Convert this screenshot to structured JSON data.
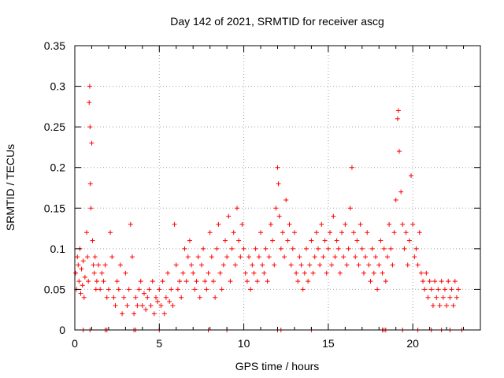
{
  "chart_data": {
    "type": "scatter",
    "title": "Day 142 of 2021, SRMTID for receiver ascg",
    "xlabel": "GPS time / hours",
    "ylabel": "SRMTID / TECUs",
    "xlim": [
      0,
      24
    ],
    "ylim": [
      0,
      0.35
    ],
    "xticks": [
      0,
      5,
      10,
      15,
      20
    ],
    "xtick_labels": [
      "0",
      "5",
      "10",
      "15",
      "20"
    ],
    "yticks": [
      0,
      0.05,
      0.1,
      0.15,
      0.2,
      0.25,
      0.3,
      0.35
    ],
    "ytick_labels": [
      "0",
      "0.05",
      "0.1",
      "0.15",
      "0.2",
      "0.25",
      "0.3",
      "0.35"
    ],
    "grid": true,
    "marker": "+",
    "color": "#ff0000",
    "series": [
      {
        "name": "SRMTID",
        "points": [
          [
            0.05,
            0.07
          ],
          [
            0.1,
            0.05
          ],
          [
            0.15,
            0.09
          ],
          [
            0.2,
            0.08
          ],
          [
            0.25,
            0.06
          ],
          [
            0.3,
            0.1
          ],
          [
            0.35,
            0.045
          ],
          [
            0.4,
            0.075
          ],
          [
            0.45,
            0.055
          ],
          [
            0.5,
            0.085
          ],
          [
            0.55,
            0.04
          ],
          [
            0.6,
            0.065
          ],
          [
            0.7,
            0.12
          ],
          [
            0.75,
            0.09
          ],
          [
            0.8,
            0.06
          ],
          [
            0.85,
            0.28
          ],
          [
            0.88,
            0.3
          ],
          [
            0.9,
            0.25
          ],
          [
            0.92,
            0.18
          ],
          [
            0.95,
            0.15
          ],
          [
            1.0,
            0.23
          ],
          [
            1.05,
            0.11
          ],
          [
            1.1,
            0.08
          ],
          [
            1.15,
            0.07
          ],
          [
            1.2,
            0.09
          ],
          [
            1.25,
            0.05
          ],
          [
            1.3,
            0.06
          ],
          [
            1.4,
            0.08
          ],
          [
            1.5,
            0.05
          ],
          [
            1.6,
            0.07
          ],
          [
            1.7,
            0.06
          ],
          [
            1.8,
            0.08
          ],
          [
            1.9,
            0.04
          ],
          [
            2.0,
            0.05
          ],
          [
            2.1,
            0.12
          ],
          [
            2.2,
            0.09
          ],
          [
            2.3,
            0.04
          ],
          [
            2.4,
            0.03
          ],
          [
            2.5,
            0.06
          ],
          [
            2.6,
            0.05
          ],
          [
            2.7,
            0.08
          ],
          [
            2.8,
            0.02
          ],
          [
            2.9,
            0.04
          ],
          [
            3.0,
            0.07
          ],
          [
            3.1,
            0.03
          ],
          [
            3.2,
            0.05
          ],
          [
            3.3,
            0.13
          ],
          [
            3.4,
            0.09
          ],
          [
            3.5,
            0.02
          ],
          [
            3.6,
            0.04
          ],
          [
            3.7,
            0.03
          ],
          [
            3.8,
            0.05
          ],
          [
            3.9,
            0.06
          ],
          [
            4.0,
            0.03
          ],
          [
            4.1,
            0.045
          ],
          [
            4.2,
            0.025
          ],
          [
            4.3,
            0.04
          ],
          [
            4.4,
            0.05
          ],
          [
            4.5,
            0.03
          ],
          [
            4.6,
            0.06
          ],
          [
            4.7,
            0.02
          ],
          [
            4.8,
            0.04
          ],
          [
            4.9,
            0.035
          ],
          [
            5.0,
            0.05
          ],
          [
            5.1,
            0.03
          ],
          [
            5.2,
            0.06
          ],
          [
            5.3,
            0.02
          ],
          [
            5.4,
            0.04
          ],
          [
            5.5,
            0.07
          ],
          [
            5.6,
            0.035
          ],
          [
            5.7,
            0.05
          ],
          [
            5.8,
            0.03
          ],
          [
            5.9,
            0.13
          ],
          [
            6.0,
            0.08
          ],
          [
            6.1,
            0.05
          ],
          [
            6.2,
            0.06
          ],
          [
            6.3,
            0.04
          ],
          [
            6.4,
            0.07
          ],
          [
            6.5,
            0.1
          ],
          [
            6.6,
            0.06
          ],
          [
            6.7,
            0.09
          ],
          [
            6.8,
            0.11
          ],
          [
            6.9,
            0.08
          ],
          [
            7.0,
            0.07
          ],
          [
            7.1,
            0.05
          ],
          [
            7.2,
            0.06
          ],
          [
            7.3,
            0.09
          ],
          [
            7.4,
            0.04
          ],
          [
            7.5,
            0.08
          ],
          [
            7.6,
            0.1
          ],
          [
            7.7,
            0.06
          ],
          [
            7.8,
            0.05
          ],
          [
            7.9,
            0.07
          ],
          [
            8.0,
            0.12
          ],
          [
            8.1,
            0.09
          ],
          [
            8.2,
            0.06
          ],
          [
            8.3,
            0.04
          ],
          [
            8.4,
            0.1
          ],
          [
            8.5,
            0.13
          ],
          [
            8.6,
            0.07
          ],
          [
            8.7,
            0.05
          ],
          [
            8.8,
            0.08
          ],
          [
            8.9,
            0.11
          ],
          [
            9.0,
            0.09
          ],
          [
            9.1,
            0.14
          ],
          [
            9.2,
            0.06
          ],
          [
            9.3,
            0.1
          ],
          [
            9.4,
            0.12
          ],
          [
            9.5,
            0.08
          ],
          [
            9.6,
            0.15
          ],
          [
            9.7,
            0.11
          ],
          [
            9.8,
            0.09
          ],
          [
            9.9,
            0.13
          ],
          [
            10.0,
            0.1
          ],
          [
            10.1,
            0.07
          ],
          [
            10.2,
            0.06
          ],
          [
            10.3,
            0.09
          ],
          [
            10.4,
            0.05
          ],
          [
            10.5,
            0.08
          ],
          [
            10.6,
            0.07
          ],
          [
            10.7,
            0.1
          ],
          [
            10.8,
            0.06
          ],
          [
            10.9,
            0.09
          ],
          [
            11.0,
            0.12
          ],
          [
            11.1,
            0.08
          ],
          [
            11.2,
            0.07
          ],
          [
            11.3,
            0.1
          ],
          [
            11.4,
            0.06
          ],
          [
            11.5,
            0.09
          ],
          [
            11.6,
            0.13
          ],
          [
            11.7,
            0.11
          ],
          [
            11.8,
            0.08
          ],
          [
            11.9,
            0.15
          ],
          [
            12.0,
            0.2
          ],
          [
            12.05,
            0.18
          ],
          [
            12.1,
            0.14
          ],
          [
            12.2,
            0.1
          ],
          [
            12.3,
            0.12
          ],
          [
            12.4,
            0.09
          ],
          [
            12.5,
            0.16
          ],
          [
            12.6,
            0.11
          ],
          [
            12.7,
            0.13
          ],
          [
            12.8,
            0.08
          ],
          [
            12.9,
            0.1
          ],
          [
            13.0,
            0.12
          ],
          [
            13.1,
            0.07
          ],
          [
            13.2,
            0.06
          ],
          [
            13.3,
            0.09
          ],
          [
            13.4,
            0.08
          ],
          [
            13.5,
            0.05
          ],
          [
            13.6,
            0.07
          ],
          [
            13.7,
            0.1
          ],
          [
            13.8,
            0.06
          ],
          [
            13.9,
            0.08
          ],
          [
            14.0,
            0.11
          ],
          [
            14.1,
            0.07
          ],
          [
            14.2,
            0.09
          ],
          [
            14.3,
            0.12
          ],
          [
            14.4,
            0.1
          ],
          [
            14.5,
            0.08
          ],
          [
            14.6,
            0.13
          ],
          [
            14.7,
            0.09
          ],
          [
            14.8,
            0.11
          ],
          [
            14.9,
            0.07
          ],
          [
            15.0,
            0.1
          ],
          [
            15.1,
            0.12
          ],
          [
            15.2,
            0.08
          ],
          [
            15.3,
            0.14
          ],
          [
            15.4,
            0.09
          ],
          [
            15.5,
            0.11
          ],
          [
            15.6,
            0.1
          ],
          [
            15.7,
            0.07
          ],
          [
            15.8,
            0.12
          ],
          [
            15.9,
            0.09
          ],
          [
            16.0,
            0.13
          ],
          [
            16.1,
            0.08
          ],
          [
            16.2,
            0.1
          ],
          [
            16.3,
            0.15
          ],
          [
            16.4,
            0.2
          ],
          [
            16.5,
            0.12
          ],
          [
            16.6,
            0.09
          ],
          [
            16.7,
            0.11
          ],
          [
            16.8,
            0.08
          ],
          [
            16.9,
            0.13
          ],
          [
            17.0,
            0.1
          ],
          [
            17.1,
            0.07
          ],
          [
            17.2,
            0.09
          ],
          [
            17.3,
            0.12
          ],
          [
            17.4,
            0.08
          ],
          [
            17.5,
            0.06
          ],
          [
            17.6,
            0.1
          ],
          [
            17.7,
            0.07
          ],
          [
            17.8,
            0.09
          ],
          [
            17.9,
            0.05
          ],
          [
            18.0,
            0.08
          ],
          [
            18.1,
            0.11
          ],
          [
            18.2,
            0.07
          ],
          [
            18.3,
            0.1
          ],
          [
            18.4,
            0.06
          ],
          [
            18.5,
            0.09
          ],
          [
            18.6,
            0.13
          ],
          [
            18.7,
            0.1
          ],
          [
            18.8,
            0.08
          ],
          [
            18.9,
            0.12
          ],
          [
            19.0,
            0.16
          ],
          [
            19.1,
            0.26
          ],
          [
            19.15,
            0.27
          ],
          [
            19.2,
            0.22
          ],
          [
            19.3,
            0.17
          ],
          [
            19.4,
            0.13
          ],
          [
            19.5,
            0.1
          ],
          [
            19.6,
            0.12
          ],
          [
            19.7,
            0.08
          ],
          [
            19.8,
            0.11
          ],
          [
            19.9,
            0.19
          ],
          [
            20.0,
            0.13
          ],
          [
            20.1,
            0.09
          ],
          [
            20.2,
            0.1
          ],
          [
            20.3,
            0.08
          ],
          [
            20.4,
            0.12
          ],
          [
            20.5,
            0.07
          ],
          [
            20.6,
            0.06
          ],
          [
            20.7,
            0.05
          ],
          [
            20.8,
            0.07
          ],
          [
            20.9,
            0.04
          ],
          [
            21.0,
            0.06
          ],
          [
            21.1,
            0.05
          ],
          [
            21.2,
            0.03
          ],
          [
            21.3,
            0.06
          ],
          [
            21.4,
            0.04
          ],
          [
            21.5,
            0.05
          ],
          [
            21.6,
            0.03
          ],
          [
            21.7,
            0.06
          ],
          [
            21.8,
            0.04
          ],
          [
            21.9,
            0.05
          ],
          [
            22.0,
            0.03
          ],
          [
            22.1,
            0.06
          ],
          [
            22.2,
            0.04
          ],
          [
            22.3,
            0.05
          ],
          [
            22.4,
            0.03
          ],
          [
            22.5,
            0.06
          ],
          [
            22.6,
            0.04
          ],
          [
            22.7,
            0.05
          ]
        ],
        "zero_points": [
          0.5,
          0.9,
          1.8,
          1.9,
          3.5,
          3.6,
          5.0,
          7.9,
          9.0,
          12.0,
          12.2,
          14.0,
          18.2,
          18.3,
          18.4,
          19.4,
          20.3,
          21.1,
          21.7,
          22.2,
          22.9
        ]
      }
    ]
  }
}
